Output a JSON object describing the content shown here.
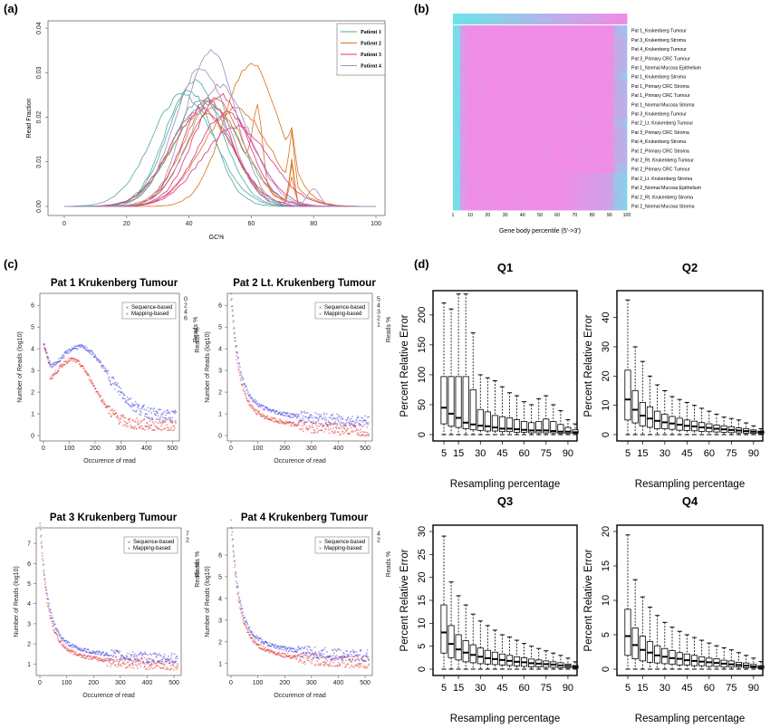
{
  "panel_labels": {
    "a": "(a)",
    "b": "(b)",
    "c": "(c)",
    "d": "(d)"
  },
  "colors": {
    "patient1": "#4fa9a0",
    "patient2": "#d8711b",
    "patient3": "#d9328b",
    "patient4": "#9c8fb8",
    "seq": "#3333dd",
    "map": "#dd2222",
    "heat_low": "#6de3e9",
    "heat_high": "#f08ce6"
  },
  "chart_data": [
    {
      "type": "line",
      "panel": "a",
      "xlabel": "GC%",
      "ylabel": "Read Fraction",
      "xlim": [
        0,
        100
      ],
      "ylim": [
        0,
        0.04
      ],
      "xticks": [
        "0",
        "20",
        "40",
        "60",
        "80",
        "100"
      ],
      "yticks": [
        "0.00",
        "0.01",
        "0.02",
        "0.03",
        "0.04"
      ],
      "legend": [
        "Patient 1",
        "Patient 2",
        "Patient 3",
        "Patient 4"
      ],
      "legend_position": "top-right",
      "series": [
        {
          "name": "Patient 1",
          "peaks": [
            [
              40,
              0.026
            ],
            [
              42,
              0.028
            ],
            [
              44,
              0.024
            ],
            [
              38,
              0.025
            ],
            [
              46,
              0.023
            ]
          ]
        },
        {
          "name": "Patient 2",
          "peaks": [
            [
              62,
              0.0385
            ],
            [
              60,
              0.032
            ],
            [
              48,
              0.024
            ],
            [
              44,
              0.021
            ],
            [
              55,
              0.022
            ]
          ],
          "spike": [
            73,
            0.012
          ]
        },
        {
          "name": "Patient 3",
          "peaks": [
            [
              46,
              0.024
            ],
            [
              50,
              0.025
            ],
            [
              52,
              0.021
            ],
            [
              44,
              0.022
            ],
            [
              55,
              0.018
            ]
          ]
        },
        {
          "name": "Patient 4",
          "peaks": [
            [
              47,
              0.035
            ],
            [
              44,
              0.031
            ],
            [
              50,
              0.027
            ]
          ]
        }
      ]
    },
    {
      "type": "heatmap",
      "panel": "b",
      "xlabel": "Gene body percentile (5'->3')",
      "xticks": [
        "1",
        "10",
        "20",
        "30",
        "40",
        "50",
        "60",
        "70",
        "80",
        "90",
        "100"
      ],
      "rows": [
        "Pat 1_Krukenberg Tumour",
        "Pat 3_Krukenberg Stroma",
        "Pat 4_Krukenberg Tumour",
        "Pat 3_Primary CRC Tumour",
        "Pat 1_Normal Mucosa Epithelium",
        "Pat 1_Krukenberg Stroma",
        "Pat 1_Primary CRC Stroma",
        "Pat 1_Primary CRC Tumour",
        "Pat 1_Normal Mucosa Stroma",
        "Pat 3_Krukenberg Tumour",
        "Pat 2_Lt. Krukenberg Tumour",
        "Pat 3_Primary CRC Stroma",
        "Pat 4_Krukenberg Stroma",
        "Pat 2_Primary CRC Stroma",
        "Pat 2_Rt. Krukenberg Tumour",
        "Pat 2_Primary CRC Tumour",
        "Pat 2_Lt. Krukenberg Stroma",
        "Pat 2_Normal Mucosa Epithelium",
        "Pat 2_Rt. Krukenberg Stroma",
        "Pat 2_Normal Mucosa Stroma"
      ]
    },
    {
      "type": "scatter",
      "panel": "c",
      "title": "Pat 1 Krukenberg Tumour",
      "xlabel": "Occurence of read",
      "ylabel": "Number of Reads (log10)",
      "y2label": "Reads %",
      "xlim": [
        0,
        520
      ],
      "xticks": [
        "0",
        "100",
        "200",
        "300",
        "400",
        "500"
      ],
      "yticks": [
        "0",
        "1",
        "2",
        "3",
        "4",
        "5",
        "6"
      ],
      "y2ticks": [
        "0",
        "2",
        "4",
        "6"
      ],
      "legend": [
        "Sequence-based",
        "Mapping-based"
      ],
      "series": [
        {
          "name": "Sequence-based",
          "plateau": 3.2,
          "tail": 0.8
        },
        {
          "name": "Mapping-based",
          "plateau": 3.1,
          "tail": 0.4
        }
      ]
    },
    {
      "type": "scatter",
      "panel": "c",
      "title": "Pat 2 Lt. Krukenberg Tumour",
      "xlabel": "Occurence of read",
      "ylabel": "Number of Reads (log10)",
      "y2label": "Reads %",
      "xlim": [
        0,
        520
      ],
      "xticks": [
        "0",
        "100",
        "200",
        "300",
        "400",
        "500"
      ],
      "yticks": [
        "0",
        "1",
        "2",
        "3",
        "4",
        "5",
        "6"
      ],
      "y2ticks": [
        "5",
        "4",
        "3",
        "2",
        "1"
      ],
      "legend": [
        "Sequence-based",
        "Mapping-based"
      ],
      "series": [
        {
          "name": "Sequence-based",
          "start": 5.5,
          "tail": 0.6
        },
        {
          "name": "Mapping-based",
          "start": 5.3,
          "tail": 0.3
        }
      ]
    },
    {
      "type": "scatter",
      "panel": "c",
      "title": "Pat 3 Krukenberg Tumour",
      "xlabel": "Occurence of read",
      "ylabel": "Number of Reads (log10)",
      "y2label": "Reads %",
      "xlim": [
        0,
        520
      ],
      "xticks": [
        "0",
        "100",
        "200",
        "300",
        "400",
        "500"
      ],
      "yticks": [
        "1",
        "2",
        "3",
        "4",
        "5",
        "6",
        "7"
      ],
      "y2ticks": [
        "7",
        "2"
      ],
      "legend": [
        "Sequence-based",
        "Mapping-based"
      ],
      "series": [
        {
          "name": "Sequence-based",
          "start": 7,
          "tail": 1.2
        },
        {
          "name": "Mapping-based",
          "start": 6.8,
          "tail": 1.0
        }
      ]
    },
    {
      "type": "scatter",
      "panel": "c",
      "title": "Pat 4 Krukenberg Tumour",
      "xlabel": "Occurence of read",
      "ylabel": "Number of Reads (log10)",
      "y2label": "Reads %",
      "xlim": [
        0,
        520
      ],
      "xticks": [
        "0",
        "100",
        "200",
        "300",
        "400",
        "500"
      ],
      "yticks": [
        "1",
        "2",
        "3",
        "4",
        "5",
        "6"
      ],
      "y2ticks": [
        "4",
        "2"
      ],
      "legend": [
        "Sequence-based",
        "Mapping-based"
      ],
      "series": [
        {
          "name": "Sequence-based",
          "start": 6.5,
          "tail": 1.3
        },
        {
          "name": "Mapping-based",
          "start": 6.3,
          "tail": 1.1
        }
      ]
    },
    {
      "type": "box",
      "panel": "d",
      "title": "Q1",
      "xlabel": "Resampling percentage",
      "ylabel": "Percent Relative Error",
      "ylim": [
        0,
        230
      ],
      "yticks": [
        "0",
        "50",
        "100",
        "150",
        "200"
      ],
      "xticks": [
        "5",
        "15",
        "30",
        "45",
        "60",
        "75",
        "90"
      ],
      "x": [
        5,
        10,
        15,
        20,
        25,
        30,
        35,
        40,
        45,
        50,
        55,
        60,
        65,
        70,
        75,
        80,
        85,
        90,
        95
      ],
      "q1": [
        18,
        14,
        12,
        10,
        8,
        7,
        6,
        6,
        5,
        5,
        4,
        4,
        3,
        3,
        3,
        3,
        2,
        2,
        2
      ],
      "median": [
        45,
        35,
        28,
        20,
        17,
        15,
        14,
        12,
        10,
        10,
        9,
        8,
        7,
        7,
        7,
        6,
        5,
        5,
        4
      ],
      "q3": [
        97,
        97,
        97,
        97,
        75,
        42,
        38,
        32,
        30,
        28,
        25,
        22,
        20,
        22,
        26,
        22,
        17,
        12,
        8
      ],
      "whisker": [
        220,
        210,
        235,
        235,
        170,
        100,
        95,
        90,
        80,
        70,
        65,
        55,
        50,
        60,
        65,
        50,
        40,
        25,
        18
      ]
    },
    {
      "type": "box",
      "panel": "d",
      "title": "Q2",
      "xlabel": "Resampling percentage",
      "ylabel": "Percent Relative Error",
      "ylim": [
        0,
        47
      ],
      "yticks": [
        "0",
        "10",
        "20",
        "30",
        "40"
      ],
      "xticks": [
        "5",
        "15",
        "30",
        "45",
        "60",
        "75",
        "90"
      ],
      "x": [
        5,
        10,
        15,
        20,
        25,
        30,
        35,
        40,
        45,
        50,
        55,
        60,
        65,
        70,
        75,
        80,
        85,
        90,
        95
      ],
      "q1": [
        5,
        4,
        3,
        2.5,
        2,
        2,
        1.8,
        1.5,
        1.4,
        1.3,
        1.1,
        1,
        0.9,
        0.8,
        0.7,
        0.6,
        0.5,
        0.4,
        0.3
      ],
      "median": [
        12,
        8.5,
        6.5,
        5.5,
        4.7,
        4.2,
        3.8,
        3.4,
        3,
        2.8,
        2.5,
        2.3,
        2,
        1.8,
        1.6,
        1.4,
        1.2,
        1,
        0.8
      ],
      "q3": [
        22,
        15,
        11,
        9.5,
        8,
        7,
        6.2,
        5.6,
        5,
        4.6,
        4.1,
        3.7,
        3.3,
        3,
        2.7,
        2.3,
        2,
        1.6,
        1.2
      ],
      "whisker": [
        46,
        30,
        25,
        20,
        17,
        15,
        13,
        12,
        11,
        10,
        9,
        8,
        7,
        6,
        5.5,
        5,
        4,
        3,
        2
      ]
    },
    {
      "type": "box",
      "panel": "d",
      "title": "Q3",
      "xlabel": "Resampling percentage",
      "ylabel": "Percent Relative Error",
      "ylim": [
        0,
        30
      ],
      "yticks": [
        "0",
        "5",
        "10",
        "15",
        "20",
        "25",
        "30"
      ],
      "xticks": [
        "5",
        "15",
        "30",
        "45",
        "60",
        "75",
        "90"
      ],
      "x": [
        5,
        10,
        15,
        20,
        25,
        30,
        35,
        40,
        45,
        50,
        55,
        60,
        65,
        70,
        75,
        80,
        85,
        90,
        95
      ],
      "q1": [
        3.5,
        2.5,
        2,
        1.6,
        1.4,
        1.2,
        1.1,
        1,
        0.9,
        0.8,
        0.7,
        0.6,
        0.5,
        0.5,
        0.4,
        0.4,
        0.3,
        0.3,
        0.2
      ],
      "median": [
        8,
        5.5,
        4.3,
        3.6,
        3.1,
        2.7,
        2.4,
        2.2,
        2,
        1.8,
        1.6,
        1.5,
        1.3,
        1.2,
        1.1,
        1,
        0.8,
        0.7,
        0.5
      ],
      "q3": [
        14,
        9.5,
        7.5,
        6.2,
        5.3,
        4.6,
        4.1,
        3.7,
        3.3,
        3,
        2.7,
        2.5,
        2.2,
        2,
        1.8,
        1.6,
        1.4,
        1.1,
        0.8
      ],
      "whisker": [
        29,
        19,
        16,
        14,
        12,
        10.5,
        9.5,
        8.5,
        7.5,
        7,
        6.3,
        5.6,
        5,
        4.5,
        4,
        3.5,
        3,
        2.4,
        1.6
      ]
    },
    {
      "type": "box",
      "panel": "d",
      "title": "Q4",
      "xlabel": "Resampling percentage",
      "ylabel": "Percent Relative Error",
      "ylim": [
        0,
        20
      ],
      "yticks": [
        "0",
        "5",
        "10",
        "15",
        "20"
      ],
      "xticks": [
        "5",
        "15",
        "30",
        "45",
        "60",
        "75",
        "90"
      ],
      "x": [
        5,
        10,
        15,
        20,
        25,
        30,
        35,
        40,
        45,
        50,
        55,
        60,
        65,
        70,
        75,
        80,
        85,
        90,
        95
      ],
      "q1": [
        2,
        1.5,
        1.2,
        1,
        0.9,
        0.8,
        0.7,
        0.6,
        0.6,
        0.5,
        0.5,
        0.4,
        0.4,
        0.3,
        0.3,
        0.3,
        0.2,
        0.2,
        0.1
      ],
      "median": [
        4.8,
        3.5,
        2.8,
        2.4,
        2,
        1.8,
        1.6,
        1.5,
        1.3,
        1.2,
        1.1,
        1,
        0.9,
        0.8,
        0.7,
        0.6,
        0.5,
        0.4,
        0.3
      ],
      "q3": [
        8.7,
        6,
        4.8,
        4,
        3.4,
        3,
        2.7,
        2.4,
        2.2,
        2,
        1.8,
        1.6,
        1.5,
        1.3,
        1.2,
        1,
        0.9,
        0.7,
        0.5
      ],
      "whisker": [
        19.5,
        13,
        10.5,
        9,
        7.8,
        6.8,
        6.1,
        5.5,
        5,
        4.6,
        4.2,
        3.8,
        3.4,
        3.1,
        2.8,
        2.4,
        2,
        1.6,
        1.1
      ]
    }
  ]
}
